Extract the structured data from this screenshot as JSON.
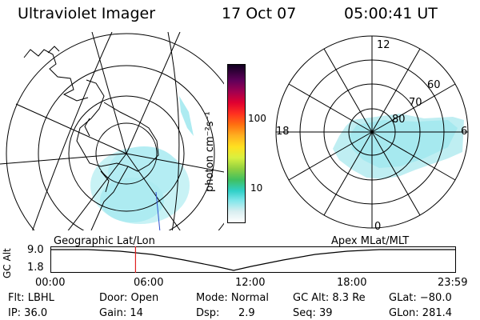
{
  "header": {
    "title": "Ultraviolet Imager",
    "date": "17 Oct 07",
    "time": "05:00:41 UT"
  },
  "colorbar": {
    "label": "photon cm⁻²s⁻¹",
    "ticks": [
      "100",
      "10"
    ]
  },
  "right_plot": {
    "hour_labels": [
      "12",
      "18",
      "6",
      "0"
    ],
    "lat_labels": [
      "60",
      "70",
      "80"
    ]
  },
  "left_plot": {
    "caption": "Geographic Lat/Lon"
  },
  "timeline": {
    "caption_right": "Apex MLat/MLT",
    "ylabel": "GC Alt",
    "y_ticks": [
      "9.0",
      "1.8"
    ],
    "x_ticks": [
      "00:00",
      "06:00",
      "12:00",
      "18:00",
      "23:59"
    ],
    "marker_hour": 5.01
  },
  "info": {
    "flt": "Flt: LBHL",
    "ip": "IP: 36.0",
    "door": "Door: Open",
    "gain": "Gain: 14",
    "mode": "Mode: Normal",
    "dsp_label": "Dsp:",
    "dsp_value": "2.9",
    "gcalt": "GC Alt: 8.3 Re",
    "seq": "Seq: 39",
    "glat": "GLat: −80.0",
    "glon": "GLon: 281.4"
  },
  "colors": {
    "aurora": "#9fe8ef",
    "marker": "#e02020"
  }
}
